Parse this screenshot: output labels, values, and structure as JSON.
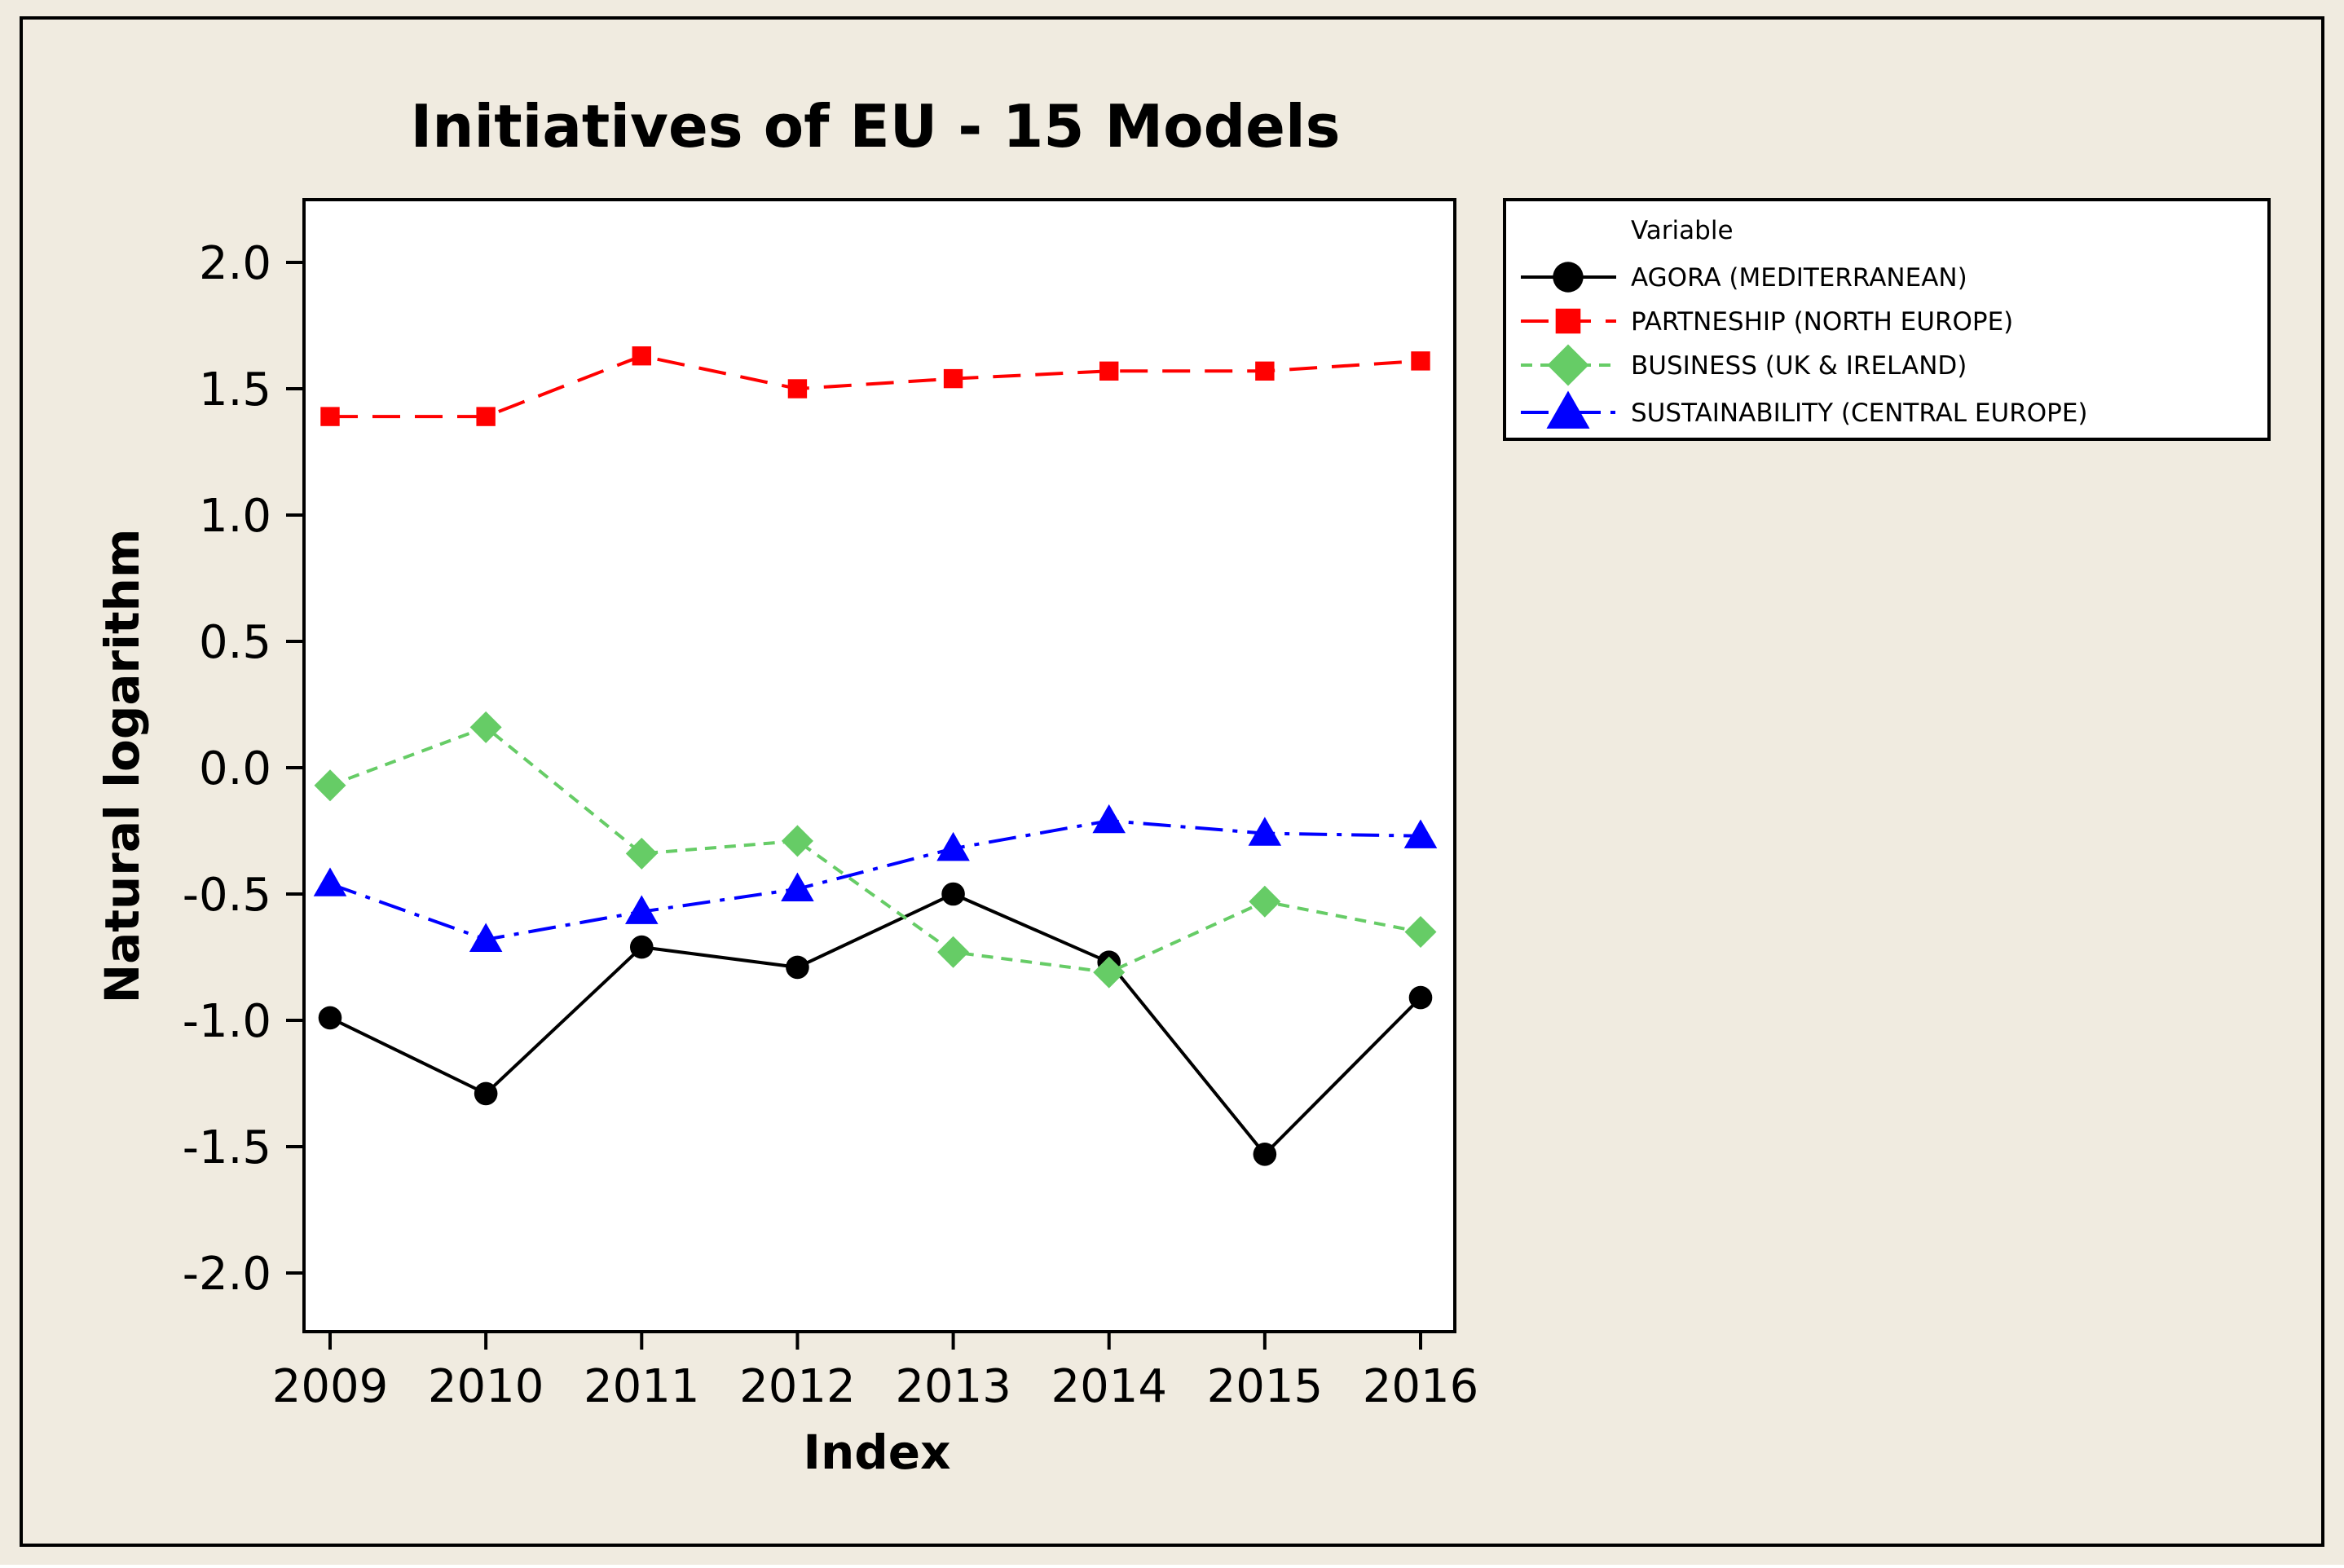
{
  "chart_data": {
    "type": "line",
    "title": "Initiatives of EU - 15 Models",
    "xlabel": "Index",
    "ylabel": "Natural logarithm",
    "categories": [
      "2009",
      "2010",
      "2011",
      "2012",
      "2013",
      "2014",
      "2015",
      "2016"
    ],
    "ylim": [
      -2.25,
      2.25
    ],
    "yticks": [
      2.0,
      1.5,
      1.0,
      0.5,
      0.0,
      -0.5,
      -1.0,
      -1.5,
      -2.0
    ],
    "ytick_labels": [
      "2.0",
      "1.5",
      "1.0",
      "0.5",
      "0.0",
      "-0.5",
      "-1.0",
      "-1.5",
      "-2.0"
    ],
    "grid": false,
    "legend": {
      "title": "Variable",
      "placement": "right"
    },
    "series": [
      {
        "name": "AGORA (MEDITERRANEAN)",
        "color": "#000000",
        "marker": "circle",
        "line_style": "solid",
        "values": [
          -0.99,
          -1.29,
          -0.71,
          -0.79,
          -0.5,
          -0.77,
          -1.53,
          -0.91
        ]
      },
      {
        "name": "PARTNESHIP (NORTH EUROPE)",
        "color": "#ff0000",
        "marker": "square",
        "line_style": "long-dash",
        "values": [
          1.39,
          1.39,
          1.63,
          1.5,
          1.54,
          1.57,
          1.57,
          1.61
        ]
      },
      {
        "name": "BUSINESS (UK & IRELAND)",
        "color": "#66cc66",
        "marker": "diamond",
        "line_style": "short-dash",
        "values": [
          -0.07,
          0.16,
          -0.34,
          -0.29,
          -0.73,
          -0.81,
          -0.53,
          -0.65
        ]
      },
      {
        "name": "SUSTAINABILITY (CENTRAL EUROPE)",
        "color": "#0000ff",
        "marker": "triangle",
        "line_style": "dash-dot",
        "values": [
          -0.46,
          -0.68,
          -0.57,
          -0.48,
          -0.32,
          -0.21,
          -0.26,
          -0.27
        ]
      }
    ],
    "background_color": "#f0ebe0",
    "plot_background_color": "#ffffff"
  }
}
